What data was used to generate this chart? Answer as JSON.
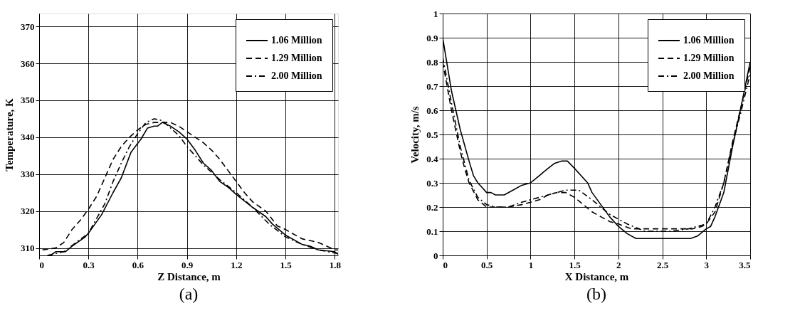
{
  "chart_data": [
    {
      "type": "line",
      "xlabel": "Z Distance, m",
      "ylabel": "Temperature, K",
      "annotations": [
        "(a)"
      ],
      "xlim": [
        0,
        1.82
      ],
      "ylim": [
        308,
        373.5
      ],
      "xticks": [
        0,
        0.3,
        0.6,
        0.9,
        1.2,
        1.5,
        1.8
      ],
      "yticks": [
        310,
        320,
        330,
        340,
        350,
        360,
        370
      ],
      "grid": true,
      "legend": "top right",
      "marker": "none",
      "series": [
        {
          "name": "1.06 Million",
          "color": "#000000",
          "line_style": "solid",
          "x": [
            0.07,
            0.1,
            0.16,
            0.2,
            0.28,
            0.3,
            0.38,
            0.45,
            0.5,
            0.56,
            0.62,
            0.66,
            0.7,
            0.72,
            0.75,
            0.8,
            0.85,
            0.9,
            0.95,
            1.0,
            1.05,
            1.1,
            1.15,
            1.2,
            1.3,
            1.38,
            1.42,
            1.5,
            1.6,
            1.65,
            1.7,
            1.8,
            1.82
          ],
          "values": [
            308,
            309,
            309,
            310.5,
            313,
            314,
            319,
            325,
            329,
            336,
            339.5,
            342.5,
            343,
            343,
            344,
            343,
            341.5,
            339.5,
            336.5,
            333,
            331,
            328,
            326.5,
            324.5,
            321,
            318.5,
            316.5,
            313.5,
            311,
            310.5,
            309.5,
            309,
            308.3
          ]
        },
        {
          "name": "1.29 Million",
          "color": "#000000",
          "line_style": "dashed",
          "x": [
            0.02,
            0.1,
            0.15,
            0.2,
            0.25,
            0.3,
            0.35,
            0.4,
            0.45,
            0.5,
            0.55,
            0.6,
            0.65,
            0.7,
            0.8,
            0.85,
            0.9,
            1.0,
            1.05,
            1.1,
            1.15,
            1.2,
            1.25,
            1.3,
            1.38,
            1.45,
            1.5,
            1.6,
            1.7,
            1.8,
            1.82
          ],
          "values": [
            309.5,
            310,
            311.5,
            315,
            317.5,
            320.5,
            324,
            329,
            334,
            337.5,
            340,
            342,
            343.5,
            344,
            344,
            343,
            341.5,
            338.5,
            336.5,
            334,
            331,
            328,
            325,
            322.5,
            320,
            316,
            315,
            312.5,
            311.5,
            309.5,
            309.5
          ]
        },
        {
          "name": "2.00 Million",
          "color": "#000000",
          "line_style": "dashdot",
          "x": [
            0.05,
            0.15,
            0.3,
            0.4,
            0.45,
            0.5,
            0.55,
            0.6,
            0.65,
            0.7,
            0.75,
            0.8,
            0.85,
            0.9,
            0.95,
            1.0,
            1.1,
            1.2,
            1.3,
            1.4,
            1.5,
            1.6,
            1.7,
            1.82
          ],
          "values": [
            308,
            309,
            314,
            322,
            328,
            333,
            337.5,
            341,
            344,
            345,
            344.5,
            342.5,
            340.5,
            337.5,
            335,
            332.5,
            328.5,
            325,
            321,
            316.5,
            313,
            311,
            309.5,
            308.5
          ]
        }
      ]
    },
    {
      "type": "line",
      "xlabel": "X Distance, m",
      "ylabel": "Velocity, m/s",
      "annotations": [
        "(b)"
      ],
      "xlim": [
        0,
        3.5
      ],
      "ylim": [
        0,
        1
      ],
      "xticks": [
        0,
        0.5,
        1,
        1.5,
        2,
        2.5,
        3,
        3.5
      ],
      "yticks": [
        0,
        0.1,
        0.2,
        0.3,
        0.4,
        0.5,
        0.6,
        0.7,
        0.8,
        0.9,
        1
      ],
      "grid": true,
      "legend": "top right",
      "marker": "none",
      "series": [
        {
          "name": "1.06 Million",
          "color": "#000000",
          "line_style": "solid",
          "x": [
            0,
            0.1,
            0.2,
            0.3,
            0.35,
            0.4,
            0.45,
            0.5,
            0.55,
            0.6,
            0.7,
            0.8,
            0.9,
            1.0,
            1.1,
            1.2,
            1.27,
            1.35,
            1.42,
            1.5,
            1.6,
            1.65,
            1.7,
            1.8,
            1.9,
            2.0,
            2.1,
            2.2,
            2.5,
            2.82,
            2.9,
            3.0,
            3.05,
            3.1,
            3.2,
            3.3,
            3.4,
            3.5
          ],
          "values": [
            0.9,
            0.68,
            0.52,
            0.39,
            0.33,
            0.3,
            0.28,
            0.26,
            0.26,
            0.25,
            0.25,
            0.27,
            0.29,
            0.3,
            0.33,
            0.36,
            0.38,
            0.39,
            0.39,
            0.36,
            0.32,
            0.3,
            0.26,
            0.21,
            0.16,
            0.12,
            0.09,
            0.07,
            0.07,
            0.07,
            0.08,
            0.11,
            0.12,
            0.16,
            0.26,
            0.45,
            0.62,
            0.8
          ]
        },
        {
          "name": "1.29 Million",
          "color": "#000000",
          "line_style": "dashed",
          "x": [
            0,
            0.1,
            0.2,
            0.25,
            0.3,
            0.4,
            0.5,
            0.6,
            0.75,
            0.9,
            1.0,
            1.1,
            1.2,
            1.3,
            1.4,
            1.5,
            1.6,
            1.7,
            1.8,
            1.9,
            2.0,
            2.15,
            2.5,
            2.85,
            2.95,
            3.0,
            3.1,
            3.2,
            3.3,
            3.4,
            3.5
          ],
          "values": [
            0.8,
            0.6,
            0.43,
            0.36,
            0.3,
            0.23,
            0.2,
            0.2,
            0.2,
            0.21,
            0.22,
            0.23,
            0.25,
            0.26,
            0.26,
            0.24,
            0.21,
            0.18,
            0.16,
            0.14,
            0.13,
            0.11,
            0.11,
            0.11,
            0.12,
            0.13,
            0.18,
            0.3,
            0.47,
            0.62,
            0.78
          ]
        },
        {
          "name": "2.00 Million",
          "color": "#000000",
          "line_style": "dashdot",
          "x": [
            0,
            0.1,
            0.2,
            0.3,
            0.4,
            0.5,
            0.6,
            0.75,
            0.9,
            1.0,
            1.1,
            1.2,
            1.3,
            1.4,
            1.55,
            1.7,
            1.8,
            1.9,
            2.0,
            2.1,
            2.3,
            2.6,
            2.8,
            3.0,
            3.1,
            3.2,
            3.3,
            3.4,
            3.5
          ],
          "values": [
            0.82,
            0.63,
            0.45,
            0.31,
            0.24,
            0.21,
            0.2,
            0.2,
            0.22,
            0.23,
            0.24,
            0.25,
            0.26,
            0.27,
            0.27,
            0.23,
            0.2,
            0.17,
            0.15,
            0.13,
            0.1,
            0.1,
            0.11,
            0.13,
            0.2,
            0.3,
            0.46,
            0.6,
            0.75
          ]
        }
      ]
    }
  ]
}
